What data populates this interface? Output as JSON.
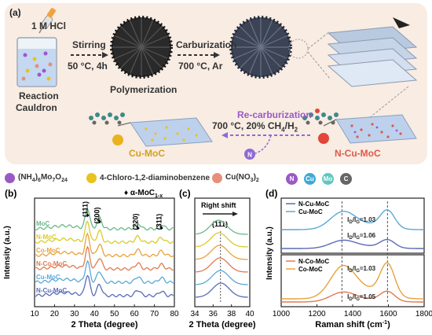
{
  "panel_a": {
    "label": "(a)",
    "hcl": "1 M HCl",
    "stirring": "Stirring",
    "stirring_cond": "50 °C, 4h",
    "reaction": "Reaction",
    "cauldron": "Cauldron",
    "polymerization": "Polymerization",
    "carburization": "Carburization",
    "carburization_cond": "700 °C, Ar",
    "recarb": "Re-carburization",
    "recarb_cond_a": "700 °C, 20% CH",
    "recarb_sub4": "4",
    "recarb_cond_b": "/H",
    "recarb_sub2": "2",
    "cu_moc": "Cu-MoC",
    "ncu_moc": "N-Cu-MoC",
    "n_symbol": "N"
  },
  "legend": {
    "item1_a": "(NH",
    "item1_s1": "4",
    "item1_b": ")",
    "item1_s2": "6",
    "item1_c": "Mo",
    "item1_s3": "7",
    "item1_d": "O",
    "item1_s4": "24",
    "item2": "4-Chloro-1,2-diaminobenzene",
    "item3_a": "Cu(NO",
    "item3_s": "3",
    "item3_b": ")",
    "item3_s2": "2",
    "elements": [
      {
        "sym": "N",
        "color": "#9b59c6"
      },
      {
        "sym": "Cu",
        "color": "#3fa9d6"
      },
      {
        "sym": "Mo",
        "color": "#5fc7c0"
      },
      {
        "sym": "C",
        "color": "#666666"
      }
    ],
    "colors": {
      "purple": "#9b59c6",
      "yellow": "#e9c31e",
      "pink": "#e88e7c"
    }
  },
  "chart_data": [
    {
      "panel": "(b)",
      "type": "line",
      "xlabel": "2 Theta (degree)",
      "ylabel": "Intensity (a.u.)",
      "xlim": [
        10,
        80
      ],
      "xticks": [
        "10",
        "20",
        "30",
        "40",
        "50",
        "60",
        "70",
        "80"
      ],
      "legend_marker": "♦",
      "legend_text": "α-MoC",
      "legend_sub": "1-x",
      "peaks": [
        {
          "label": "(111)",
          "x": 36.5
        },
        {
          "label": "(200)",
          "x": 42.5
        },
        {
          "label": "(220)",
          "x": 61.7
        },
        {
          "label": "(311)",
          "x": 73.5
        }
      ],
      "series": [
        {
          "name": "N-Cu-MoC",
          "color": "#5a6bb5"
        },
        {
          "name": "Cu-MoC",
          "color": "#5aa9d8"
        },
        {
          "name": "N-Co-MoC",
          "color": "#e07a50"
        },
        {
          "name": "Co-MoC",
          "color": "#e8a23a"
        },
        {
          "name": "N-MoC",
          "color": "#d9cc2c"
        },
        {
          "name": "MoC",
          "color": "#69b88a"
        }
      ]
    },
    {
      "panel": "(c)",
      "type": "line",
      "xlabel": "2 Theta (degree)",
      "xlim": [
        34,
        40
      ],
      "xticks": [
        "34",
        "36",
        "38",
        "40"
      ],
      "annotation": "Right shift",
      "peak_label": "(111)",
      "series_colors": [
        "#5a6bb5",
        "#5aa9d8",
        "#e07a50",
        "#e8a23a",
        "#d9cc2c",
        "#69b88a"
      ]
    },
    {
      "panel": "(d)",
      "type": "line",
      "xlabel": "Raman shift (cm",
      "xlabel_sup": "-1",
      "xlabel_end": ")",
      "ylabel": "Intensity (a.u.)",
      "xlim": [
        1000,
        1800
      ],
      "xticks": [
        "1000",
        "1200",
        "1400",
        "1600",
        "1800"
      ],
      "top": {
        "series": [
          {
            "name": "N-Cu-MoC",
            "color": "#5a6bb5"
          },
          {
            "name": "Cu-MoC",
            "color": "#5aa9d8"
          }
        ],
        "ratio_1": "=1.03",
        "ratio_2": "=1.06"
      },
      "bottom": {
        "series": [
          {
            "name": "N-Co-MoC",
            "color": "#e07a50"
          },
          {
            "name": "Co-MoC",
            "color": "#e8a23a"
          }
        ],
        "ratio_1": "=1.03",
        "ratio_2": "=1.05"
      },
      "ratio_prefix": "I",
      "ratio_d": "D",
      "ratio_g": "G",
      "ratio_slash": "/I"
    }
  ]
}
